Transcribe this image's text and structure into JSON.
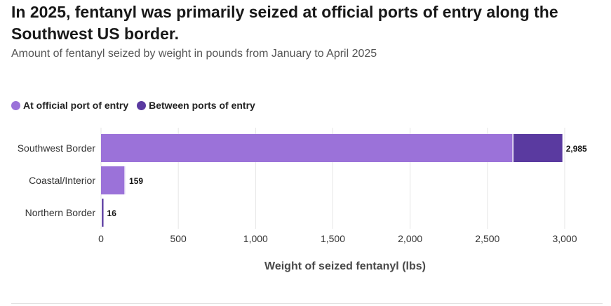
{
  "chart_data": {
    "type": "bar",
    "orientation": "horizontal",
    "stacked": true,
    "title": "In 2025, fentanyl was primarily seized at official ports of entry along the Southwest US border.",
    "subtitle": "Amount of fentanyl seized by weight in pounds from January to April 2025",
    "xlabel": "Weight of seized fentanyl (lbs)",
    "ylabel": "",
    "xlim": [
      0,
      3000
    ],
    "xticks": [
      0,
      500,
      1000,
      1500,
      2000,
      2500,
      3000
    ],
    "xtick_labels": [
      "0",
      "500",
      "1,000",
      "1,500",
      "2,000",
      "2,500",
      "3,000"
    ],
    "grid": true,
    "legend_position": "top-left",
    "categories": [
      "Southwest Border",
      "Coastal/Interior",
      "Northern Border"
    ],
    "series": [
      {
        "name": "At official port of entry",
        "color": "#9b72d9",
        "values": [
          2665,
          155,
          2
        ]
      },
      {
        "name": "Between ports of entry",
        "color": "#5a3aa0",
        "values": [
          320,
          4,
          14
        ]
      }
    ],
    "totals": [
      2985,
      159,
      16
    ],
    "total_labels": [
      "2,985",
      "159",
      "16"
    ]
  }
}
